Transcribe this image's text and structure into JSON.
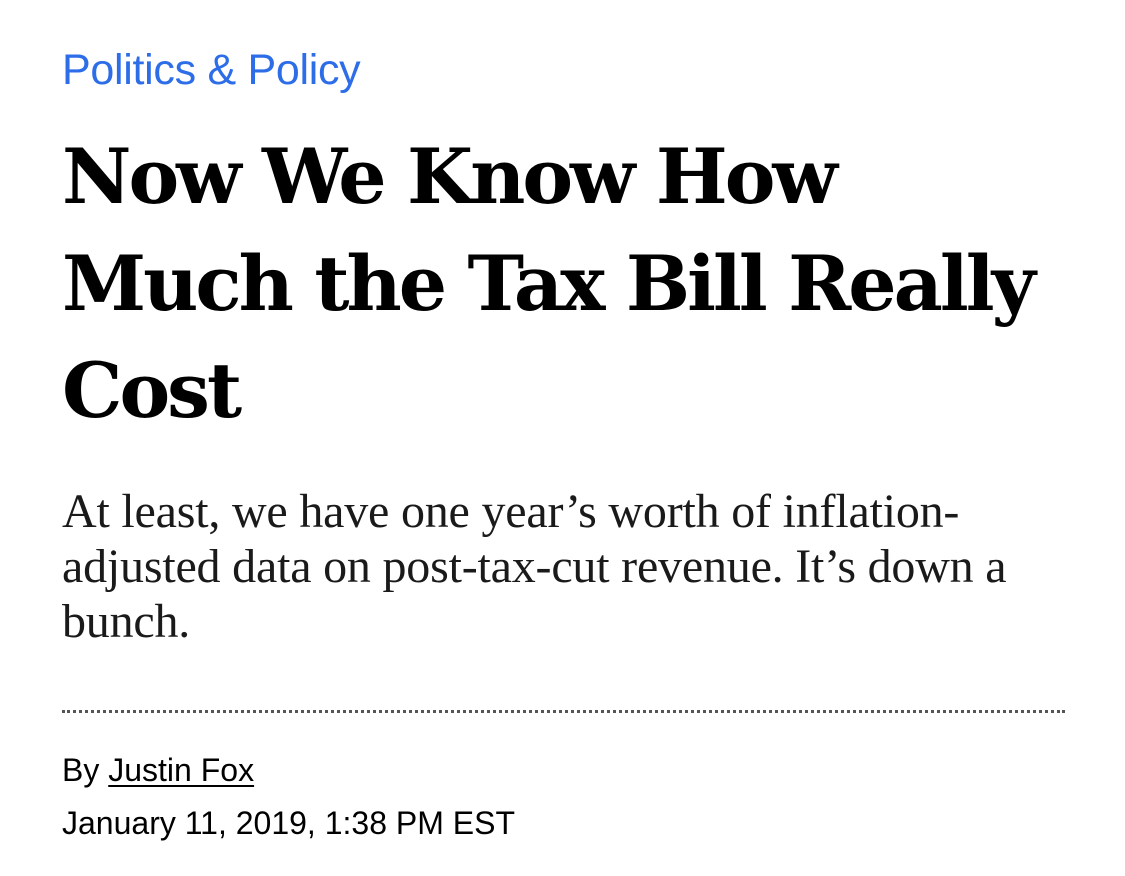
{
  "article": {
    "category": "Politics & Policy",
    "headline": "Now We Know How Much the Tax Bill Really Cost",
    "dek": "At least, we have one year’s worth of inflation-adjusted data on post-tax-cut revenue. It’s down a bunch.",
    "byline_prefix": "By",
    "author": "Justin Fox",
    "timestamp": "January 11, 2019, 1:38 PM EST"
  },
  "colors": {
    "category_link": "#2d6ee8",
    "headline": "#000000",
    "divider": "#555555"
  }
}
